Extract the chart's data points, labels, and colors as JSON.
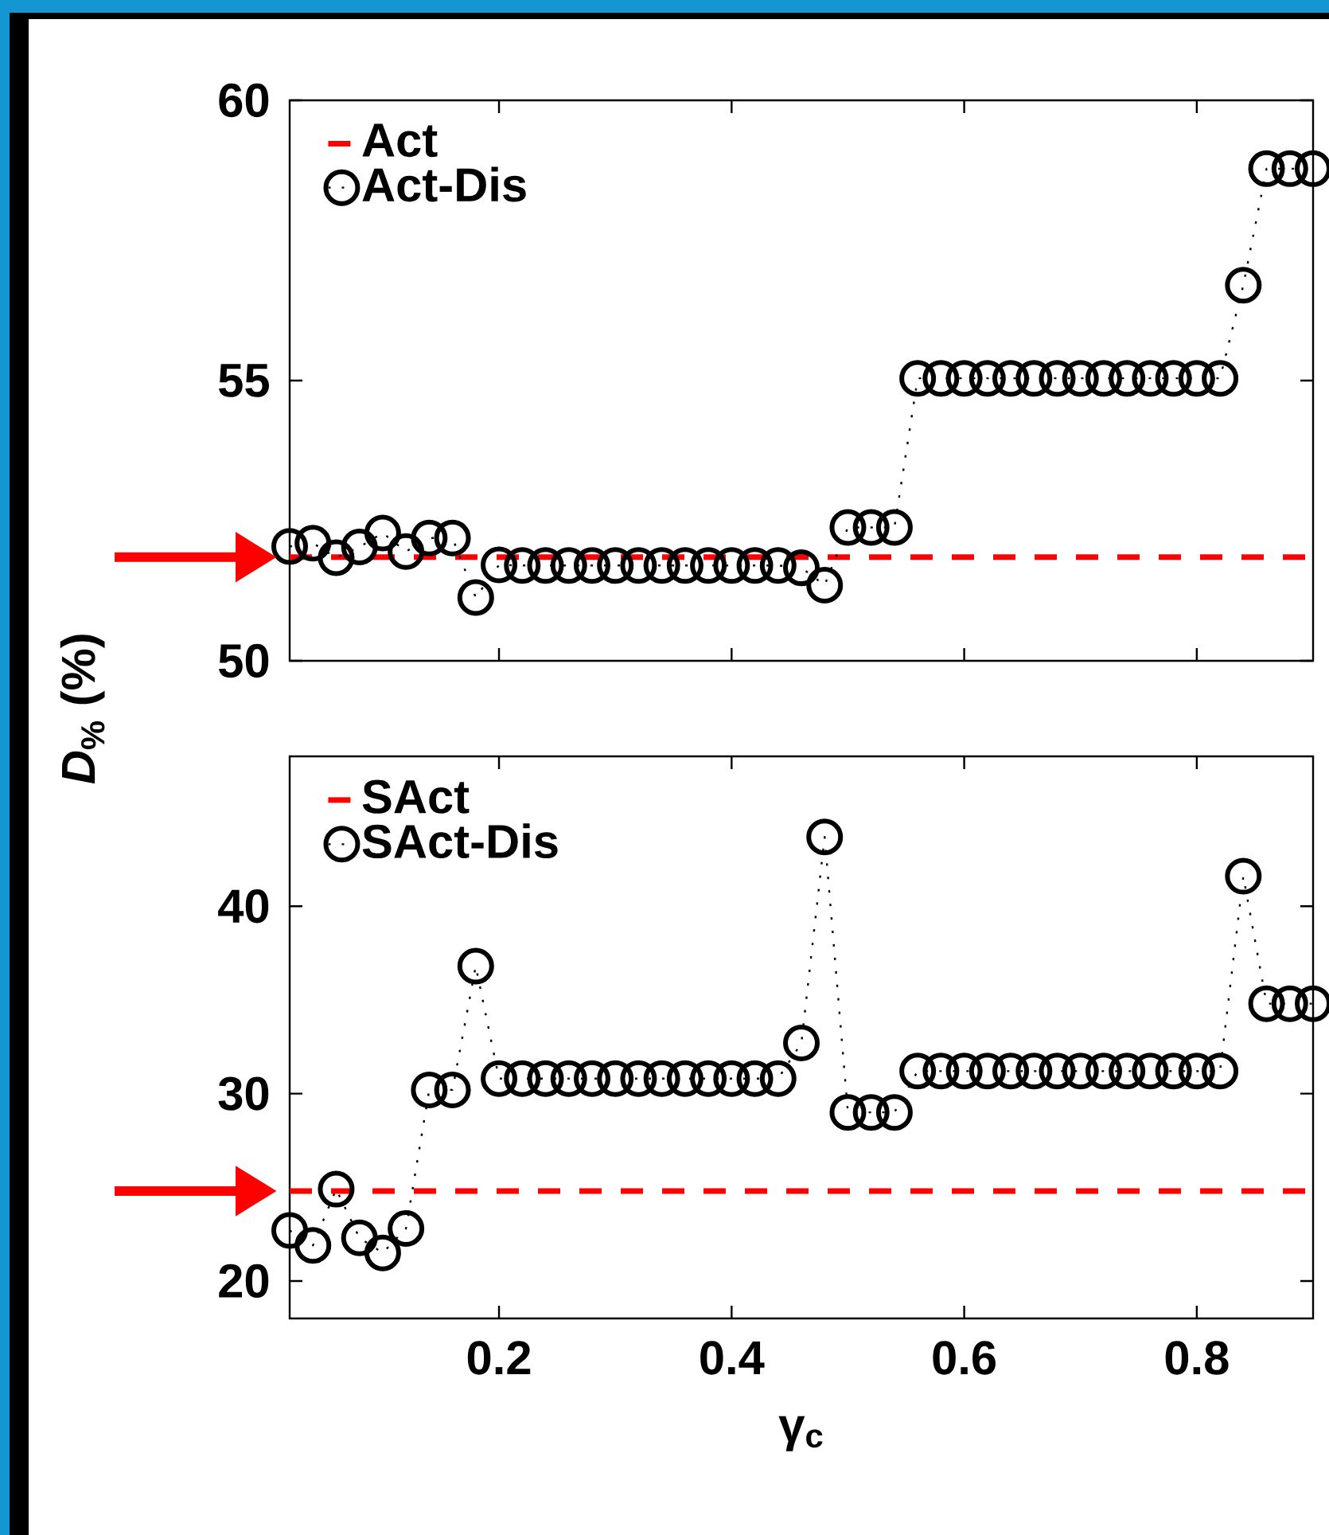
{
  "chart_data": [
    {
      "type": "line",
      "ylabel": "*D*$_{%}$ (%)",
      "xlim": [
        0.02,
        0.9
      ],
      "ylim": [
        50,
        60
      ],
      "xticks": [
        0.2,
        0.4,
        0.6,
        0.8
      ],
      "yticks": [
        50,
        55,
        60
      ],
      "tick_labels": "y",
      "legend": "top left",
      "marker": "circle",
      "line_style": "dotted",
      "x": [
        0.02,
        0.04,
        0.06,
        0.08,
        0.1,
        0.12,
        0.14,
        0.16,
        0.18,
        0.2,
        0.22,
        0.24,
        0.26,
        0.28,
        0.3,
        0.32,
        0.34,
        0.36,
        0.38,
        0.4,
        0.42,
        0.44,
        0.46,
        0.48,
        0.5,
        0.52,
        0.54,
        0.56,
        0.58,
        0.6,
        0.62,
        0.64,
        0.66,
        0.68,
        0.7,
        0.72,
        0.74,
        0.76,
        0.78,
        0.8,
        0.82,
        0.84,
        0.86,
        0.88,
        0.9
      ],
      "series": [
        {
          "name": "Act-Dis",
          "color": "#000000",
          "values": [
            52.04,
            52.1,
            51.84,
            52.03,
            52.28,
            51.95,
            52.19,
            52.19,
            51.13,
            51.71,
            51.7,
            51.7,
            51.7,
            51.7,
            51.7,
            51.7,
            51.7,
            51.7,
            51.7,
            51.7,
            51.7,
            51.7,
            51.66,
            51.35,
            52.38,
            52.38,
            52.38,
            55.04,
            55.04,
            55.04,
            55.04,
            55.04,
            55.04,
            55.04,
            55.04,
            55.04,
            55.04,
            55.04,
            55.04,
            55.04,
            55.04,
            56.7,
            58.78,
            58.78,
            58.78
          ]
        }
      ],
      "ref_lines": [
        {
          "axis": "y",
          "value": 51.85,
          "label": "Act",
          "color": "#ff0000",
          "line_style": "dashed"
        }
      ]
    },
    {
      "type": "line",
      "xlabel": "γ$_{c}$",
      "xlim": [
        0.02,
        0.9
      ],
      "ylim": [
        18,
        48
      ],
      "xticks": [
        0.2,
        0.4,
        0.6,
        0.8
      ],
      "yticks": [
        20,
        30,
        40
      ],
      "legend": "top left",
      "marker": "circle",
      "line_style": "dotted",
      "x": [
        0.02,
        0.04,
        0.06,
        0.08,
        0.1,
        0.12,
        0.14,
        0.16,
        0.18,
        0.2,
        0.22,
        0.24,
        0.26,
        0.28,
        0.3,
        0.32,
        0.34,
        0.36,
        0.38,
        0.4,
        0.42,
        0.44,
        0.46,
        0.48,
        0.5,
        0.52,
        0.54,
        0.56,
        0.58,
        0.6,
        0.62,
        0.64,
        0.66,
        0.68,
        0.7,
        0.72,
        0.74,
        0.76,
        0.78,
        0.8,
        0.82,
        0.84,
        0.86,
        0.88,
        0.9
      ],
      "series": [
        {
          "name": "SAct-Dis",
          "color": "#000000",
          "values": [
            22.7,
            21.9,
            24.9,
            22.3,
            21.5,
            22.8,
            30.2,
            30.2,
            36.8,
            30.8,
            30.8,
            30.8,
            30.8,
            30.8,
            30.8,
            30.8,
            30.8,
            30.8,
            30.8,
            30.8,
            30.8,
            30.8,
            32.7,
            43.7,
            29.0,
            29.0,
            29.0,
            31.2,
            31.2,
            31.2,
            31.2,
            31.2,
            31.2,
            31.2,
            31.2,
            31.2,
            31.2,
            31.2,
            31.2,
            31.2,
            31.2,
            41.6,
            34.8,
            34.8,
            34.8
          ]
        }
      ],
      "ref_lines": [
        {
          "axis": "y",
          "value": 24.8,
          "label": "SAct",
          "color": "#ff0000",
          "line_style": "dashed"
        }
      ]
    }
  ]
}
